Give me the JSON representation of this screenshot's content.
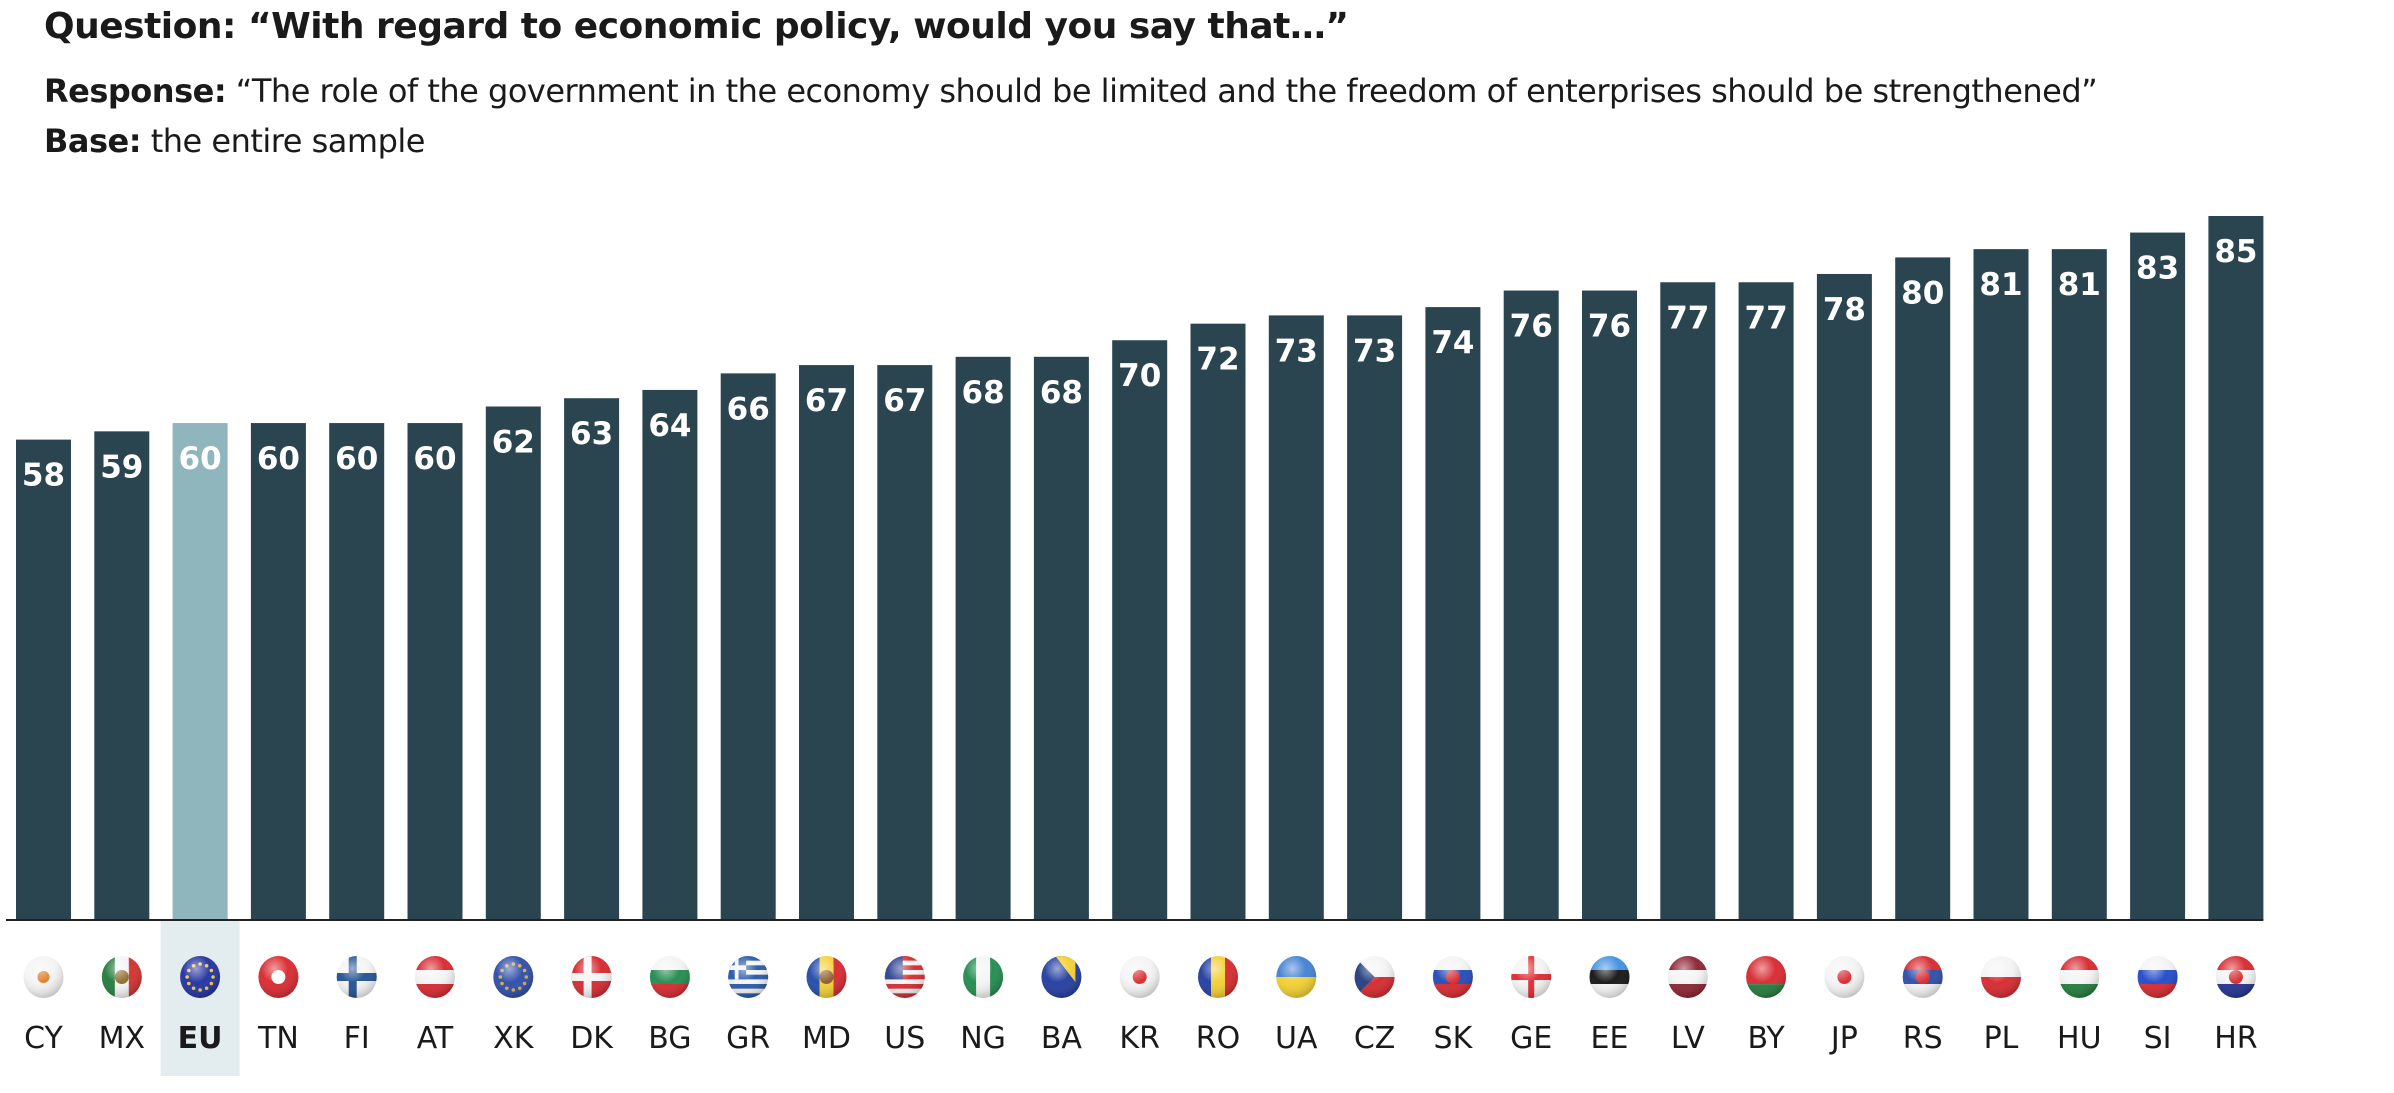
{
  "header": {
    "question_label": "Question:",
    "question_text": "“With regard to economic policy, would you say that…”",
    "response_label": "Response:",
    "response_text": "“The role of the government in the economy should be limited and the freedom of enterprises should be strengthened”",
    "base_label": "Base:",
    "base_text": "the entire sample"
  },
  "colors": {
    "bar": "#2b4550",
    "bar_highlight": "#8fb5bd",
    "highlight_bg": "#e3ecee",
    "axis": "#222222",
    "value_label": "#ffffff"
  },
  "chart_data": {
    "type": "bar",
    "title": "With regard to economic policy, would you say that… — The role of the government in the economy should be limited and the freedom of enterprises should be strengthened",
    "xlabel": "",
    "ylabel": "",
    "ylim": [
      0,
      85
    ],
    "grid": false,
    "highlight_category": "EU",
    "categories": [
      "CY",
      "MX",
      "EU",
      "TN",
      "FI",
      "AT",
      "XK",
      "DK",
      "BG",
      "GR",
      "MD",
      "US",
      "NG",
      "BA",
      "KR",
      "RO",
      "UA",
      "CZ",
      "SK",
      "GE",
      "EE",
      "LV",
      "BY",
      "JP",
      "RS",
      "PL",
      "HU",
      "SI",
      "HR"
    ],
    "values": [
      58,
      59,
      60,
      60,
      60,
      60,
      62,
      63,
      64,
      66,
      67,
      67,
      68,
      68,
      70,
      72,
      73,
      73,
      74,
      76,
      76,
      77,
      77,
      78,
      80,
      81,
      81,
      83,
      85
    ]
  },
  "flags": {
    "CY": {
      "icon": "cyprus-flag-icon",
      "type": "plain",
      "colors": [
        "#f4f4f4"
      ],
      "mark": "#e07a22"
    },
    "MX": {
      "icon": "mexico-flag-icon",
      "type": "v",
      "colors": [
        "#1f7a3a",
        "#f4f4f4",
        "#d22d2d"
      ],
      "mark": "#8a6a2a"
    },
    "EU": {
      "icon": "eu-flag-icon",
      "type": "plain",
      "colors": [
        "#1f2f9e"
      ],
      "mark": "#f2c744"
    },
    "TN": {
      "icon": "tunisia-flag-icon",
      "type": "plain",
      "colors": [
        "#d9262c"
      ],
      "mark": "#ffffff"
    },
    "FI": {
      "icon": "finland-flag-icon",
      "type": "cross",
      "colors": [
        "#f4f4f4",
        "#1e4f8f"
      ]
    },
    "AT": {
      "icon": "austria-flag-icon",
      "type": "h",
      "colors": [
        "#d6262c",
        "#f4f4f4",
        "#d6262c"
      ]
    },
    "XK": {
      "icon": "kosovo-flag-icon",
      "type": "plain",
      "colors": [
        "#2a4aa8"
      ],
      "mark": "#d8a93c"
    },
    "DK": {
      "icon": "denmark-flag-icon",
      "type": "cross",
      "colors": [
        "#d6262c",
        "#f4f4f4"
      ]
    },
    "BG": {
      "icon": "bulgaria-flag-icon",
      "type": "h",
      "colors": [
        "#f4f4f4",
        "#1f8a4c",
        "#d6262c"
      ]
    },
    "GR": {
      "icon": "greece-flag-icon",
      "type": "stripes",
      "colors": [
        "#2456a8",
        "#f4f4f4"
      ]
    },
    "MD": {
      "icon": "moldova-flag-icon",
      "type": "v",
      "colors": [
        "#1f48a8",
        "#f2cf2e",
        "#d6262c"
      ],
      "mark": "#8a5a2a"
    },
    "US": {
      "icon": "usa-flag-icon",
      "type": "stripes",
      "colors": [
        "#d6262c",
        "#f4f4f4"
      ],
      "canton": "#2a3f8f"
    },
    "NG": {
      "icon": "nigeria-flag-icon",
      "type": "v",
      "colors": [
        "#1f8a4c",
        "#f4f4f4",
        "#1f8a4c"
      ]
    },
    "BA": {
      "icon": "bosnia-flag-icon",
      "type": "plain",
      "colors": [
        "#1f3a9e"
      ],
      "mark": "#f2cf2e"
    },
    "KR": {
      "icon": "south-korea-flag-icon",
      "type": "plain",
      "colors": [
        "#f4f4f4"
      ],
      "mark": "#d6262c"
    },
    "RO": {
      "icon": "romania-flag-icon",
      "type": "v",
      "colors": [
        "#1f3a9e",
        "#f2cf2e",
        "#d6262c"
      ]
    },
    "UA": {
      "icon": "ukraine-flag-icon",
      "type": "h2",
      "colors": [
        "#3f7fd0",
        "#f2cf2e"
      ]
    },
    "CZ": {
      "icon": "czech-flag-icon",
      "type": "h2",
      "colors": [
        "#f4f4f4",
        "#d6262c"
      ],
      "canton": "#1f3a7e"
    },
    "SK": {
      "icon": "slovakia-flag-icon",
      "type": "h",
      "colors": [
        "#f4f4f4",
        "#1f48b8",
        "#d6262c"
      ],
      "mark": "#d6262c"
    },
    "GE": {
      "icon": "georgia-flag-icon",
      "type": "cross-c",
      "colors": [
        "#f4f4f4",
        "#e0262c"
      ]
    },
    "EE": {
      "icon": "estonia-flag-icon",
      "type": "h",
      "colors": [
        "#3f8fe0",
        "#111111",
        "#f4f4f4"
      ]
    },
    "LV": {
      "icon": "latvia-flag-icon",
      "type": "h",
      "colors": [
        "#8a2030",
        "#f4f4f4",
        "#8a2030"
      ]
    },
    "BY": {
      "icon": "belarus-flag-icon",
      "type": "h2",
      "colors": [
        "#d6262c",
        "#1f7a3a"
      ],
      "split": 0.67
    },
    "JP": {
      "icon": "japan-flag-icon",
      "type": "plain",
      "colors": [
        "#f4f4f4"
      ],
      "mark": "#d6262c"
    },
    "RS": {
      "icon": "serbia-flag-icon",
      "type": "h",
      "colors": [
        "#d6262c",
        "#2a4aa8",
        "#f4f4f4"
      ],
      "mark": "#d6262c"
    },
    "PL": {
      "icon": "poland-flag-icon",
      "type": "h2",
      "colors": [
        "#f4f4f4",
        "#d6262c"
      ]
    },
    "HU": {
      "icon": "hungary-flag-icon",
      "type": "h",
      "colors": [
        "#d6262c",
        "#f4f4f4",
        "#1f7a3a"
      ]
    },
    "SI": {
      "icon": "slovenia-flag-icon",
      "type": "h",
      "colors": [
        "#f4f4f4",
        "#1f48c8",
        "#d6262c"
      ],
      "mark": "#1f48c8"
    },
    "HR": {
      "icon": "croatia-flag-icon",
      "type": "h",
      "colors": [
        "#d6262c",
        "#f4f4f4",
        "#1f2f8f"
      ],
      "mark": "#d6262c"
    }
  }
}
